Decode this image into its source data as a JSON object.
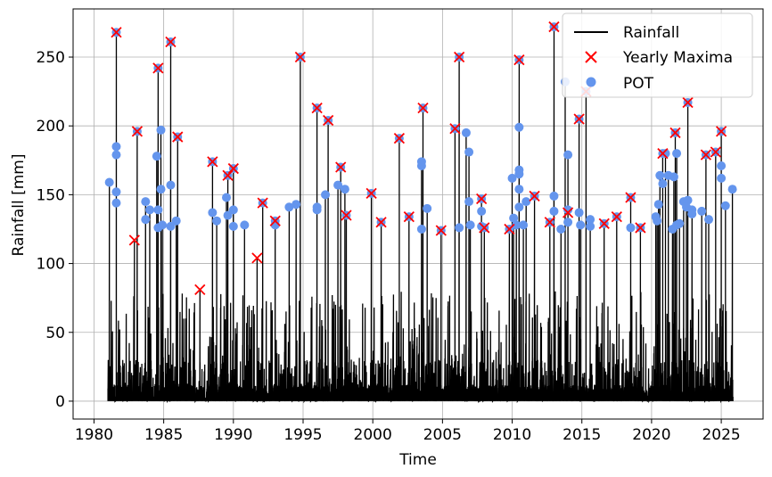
{
  "chart_data": {
    "type": "line",
    "title": "",
    "xlabel": "Time",
    "ylabel": "Rainfall [mm]",
    "xlim": [
      1978.5,
      2028.0
    ],
    "ylim": [
      -13,
      285
    ],
    "x_ticks": [
      1980,
      1985,
      1990,
      1995,
      2000,
      2005,
      2010,
      2015,
      2020,
      2025
    ],
    "y_ticks": [
      0,
      50,
      100,
      150,
      200,
      250
    ],
    "grid": true,
    "legend_position": "top-right",
    "legend": [
      {
        "label": "Rainfall",
        "marker": "line",
        "color": "#000000"
      },
      {
        "label": "Yearly Maxima",
        "marker": "x",
        "color": "#ff0000"
      },
      {
        "label": "POT",
        "marker": "circle",
        "color": "#6495ed"
      }
    ],
    "series": [
      {
        "name": "Yearly Maxima",
        "points": [
          [
            1981.6,
            268
          ],
          [
            1982.9,
            117
          ],
          [
            1983.1,
            196
          ],
          [
            1984.6,
            242
          ],
          [
            1985.5,
            261
          ],
          [
            1986.0,
            192
          ],
          [
            1987.6,
            81
          ],
          [
            1988.5,
            174
          ],
          [
            1989.6,
            164
          ],
          [
            1990.0,
            169
          ],
          [
            1991.7,
            104
          ],
          [
            1992.1,
            144
          ],
          [
            1993.0,
            131
          ],
          [
            1994.8,
            250
          ],
          [
            1996.0,
            213
          ],
          [
            1996.8,
            204
          ],
          [
            1997.7,
            170
          ],
          [
            1998.1,
            135
          ],
          [
            1999.9,
            151
          ],
          [
            2000.6,
            130
          ],
          [
            2001.9,
            191
          ],
          [
            2002.6,
            134
          ],
          [
            2003.6,
            213
          ],
          [
            2004.9,
            124
          ],
          [
            2005.9,
            198
          ],
          [
            2006.2,
            250
          ],
          [
            2007.8,
            147
          ],
          [
            2008.0,
            126
          ],
          [
            2009.8,
            125
          ],
          [
            2010.5,
            248
          ],
          [
            2011.6,
            149
          ],
          [
            2012.7,
            130
          ],
          [
            2013.0,
            272
          ],
          [
            2014.0,
            137
          ],
          [
            2014.8,
            205
          ],
          [
            2015.3,
            225
          ],
          [
            2016.6,
            129
          ],
          [
            2017.5,
            134
          ],
          [
            2018.5,
            148
          ],
          [
            2019.2,
            126
          ],
          [
            2020.8,
            180
          ],
          [
            2021.7,
            195
          ],
          [
            2022.6,
            217
          ],
          [
            2023.9,
            179
          ],
          [
            2024.6,
            181
          ],
          [
            2025.0,
            196
          ]
        ]
      },
      {
        "name": "POT",
        "points": [
          [
            1981.1,
            159
          ],
          [
            1981.6,
            268
          ],
          [
            1981.6,
            185
          ],
          [
            1981.6,
            179
          ],
          [
            1981.6,
            152
          ],
          [
            1981.6,
            144
          ],
          [
            1983.1,
            196
          ],
          [
            1983.7,
            145
          ],
          [
            1983.7,
            132
          ],
          [
            1984.0,
            139
          ],
          [
            1984.5,
            178
          ],
          [
            1984.6,
            242
          ],
          [
            1984.6,
            139
          ],
          [
            1984.8,
            197
          ],
          [
            1984.8,
            154
          ],
          [
            1984.6,
            126
          ],
          [
            1984.9,
            128
          ],
          [
            1985.5,
            261
          ],
          [
            1985.5,
            157
          ],
          [
            1985.5,
            127
          ],
          [
            1985.9,
            131
          ],
          [
            1986.0,
            192
          ],
          [
            1988.5,
            174
          ],
          [
            1988.5,
            137
          ],
          [
            1988.8,
            131
          ],
          [
            1989.6,
            164
          ],
          [
            1989.5,
            148
          ],
          [
            1989.6,
            135
          ],
          [
            1990.0,
            169
          ],
          [
            1990.0,
            139
          ],
          [
            1990.0,
            127
          ],
          [
            1990.8,
            128
          ],
          [
            1992.1,
            144
          ],
          [
            1993.0,
            131
          ],
          [
            1993.0,
            128
          ],
          [
            1994.0,
            141
          ],
          [
            1994.5,
            143
          ],
          [
            1994.8,
            250
          ],
          [
            1996.0,
            213
          ],
          [
            1996.0,
            141
          ],
          [
            1996.0,
            139
          ],
          [
            1996.6,
            150
          ],
          [
            1996.8,
            204
          ],
          [
            1997.5,
            157
          ],
          [
            1997.7,
            170
          ],
          [
            1998.0,
            154
          ],
          [
            1998.1,
            135
          ],
          [
            1999.9,
            151
          ],
          [
            2000.6,
            130
          ],
          [
            2001.9,
            191
          ],
          [
            2002.6,
            134
          ],
          [
            2003.5,
            174
          ],
          [
            2003.6,
            213
          ],
          [
            2003.5,
            171
          ],
          [
            2003.5,
            125
          ],
          [
            2003.9,
            140
          ],
          [
            2004.9,
            124
          ],
          [
            2005.9,
            198
          ],
          [
            2006.2,
            250
          ],
          [
            2006.2,
            126
          ],
          [
            2006.7,
            195
          ],
          [
            2006.9,
            181
          ],
          [
            2006.9,
            145
          ],
          [
            2007.0,
            128
          ],
          [
            2007.8,
            147
          ],
          [
            2007.8,
            138
          ],
          [
            2007.8,
            127
          ],
          [
            2008.0,
            126
          ],
          [
            2009.8,
            125
          ],
          [
            2010.0,
            162
          ],
          [
            2010.1,
            133
          ],
          [
            2010.3,
            128
          ],
          [
            2010.5,
            248
          ],
          [
            2010.5,
            199
          ],
          [
            2010.5,
            168
          ],
          [
            2010.5,
            165
          ],
          [
            2010.5,
            154
          ],
          [
            2010.5,
            141
          ],
          [
            2010.8,
            128
          ],
          [
            2011.0,
            145
          ],
          [
            2011.6,
            149
          ],
          [
            2012.7,
            130
          ],
          [
            2013.0,
            272
          ],
          [
            2013.0,
            149
          ],
          [
            2013.0,
            138
          ],
          [
            2013.5,
            125
          ],
          [
            2013.8,
            232
          ],
          [
            2014.0,
            179
          ],
          [
            2014.0,
            139
          ],
          [
            2014.0,
            130
          ],
          [
            2014.8,
            205
          ],
          [
            2014.8,
            137
          ],
          [
            2014.9,
            128
          ],
          [
            2015.3,
            225
          ],
          [
            2015.6,
            132
          ],
          [
            2015.6,
            127
          ],
          [
            2016.6,
            129
          ],
          [
            2017.5,
            134
          ],
          [
            2018.5,
            148
          ],
          [
            2018.5,
            126
          ],
          [
            2019.2,
            126
          ],
          [
            2020.3,
            134
          ],
          [
            2020.4,
            131
          ],
          [
            2020.6,
            164
          ],
          [
            2020.8,
            180
          ],
          [
            2020.8,
            158
          ],
          [
            2020.5,
            143
          ],
          [
            2021.0,
            180
          ],
          [
            2021.2,
            164
          ],
          [
            2021.7,
            195
          ],
          [
            2021.6,
            163
          ],
          [
            2021.5,
            125
          ],
          [
            2021.8,
            180
          ],
          [
            2021.8,
            128
          ],
          [
            2022.0,
            129
          ],
          [
            2022.3,
            145
          ],
          [
            2022.6,
            217
          ],
          [
            2022.6,
            146
          ],
          [
            2022.5,
            141
          ],
          [
            2022.9,
            136
          ],
          [
            2022.9,
            139
          ],
          [
            2023.6,
            138
          ],
          [
            2023.9,
            179
          ],
          [
            2024.1,
            132
          ],
          [
            2024.6,
            181
          ],
          [
            2025.0,
            196
          ],
          [
            2025.0,
            171
          ],
          [
            2025.0,
            162
          ],
          [
            2025.3,
            142
          ],
          [
            2025.8,
            154
          ]
        ]
      }
    ]
  }
}
